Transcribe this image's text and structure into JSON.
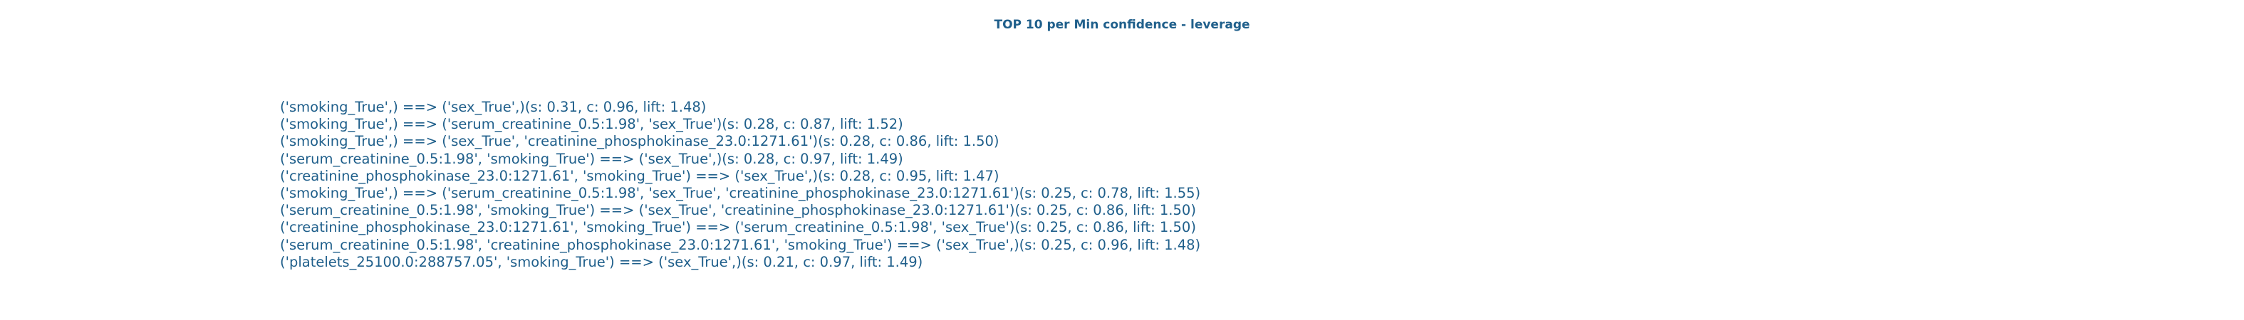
{
  "chart_data": {
    "type": "table",
    "title": "TOP 10 per Min confidence - leverage",
    "colors": {
      "text": "#1f5f8b",
      "background": "#ffffff"
    },
    "rules": [
      "('smoking_True',) ==> ('sex_True',)(s: 0.31, c: 0.96, lift: 1.48)",
      "('smoking_True',) ==> ('serum_creatinine_0.5:1.98', 'sex_True')(s: 0.28, c: 0.87, lift: 1.52)",
      "('smoking_True',) ==> ('sex_True', 'creatinine_phosphokinase_23.0:1271.61')(s: 0.28, c: 0.86, lift: 1.50)",
      "('serum_creatinine_0.5:1.98', 'smoking_True') ==> ('sex_True',)(s: 0.28, c: 0.97, lift: 1.49)",
      "('creatinine_phosphokinase_23.0:1271.61', 'smoking_True') ==> ('sex_True',)(s: 0.28, c: 0.95, lift: 1.47)",
      "('smoking_True',) ==> ('serum_creatinine_0.5:1.98', 'sex_True', 'creatinine_phosphokinase_23.0:1271.61')(s: 0.25, c: 0.78, lift: 1.55)",
      "('serum_creatinine_0.5:1.98', 'smoking_True') ==> ('sex_True', 'creatinine_phosphokinase_23.0:1271.61')(s: 0.25, c: 0.86, lift: 1.50)",
      "('creatinine_phosphokinase_23.0:1271.61', 'smoking_True') ==> ('serum_creatinine_0.5:1.98', 'sex_True')(s: 0.25, c: 0.86, lift: 1.50)",
      "('serum_creatinine_0.5:1.98', 'creatinine_phosphokinase_23.0:1271.61', 'smoking_True') ==> ('sex_True',)(s: 0.25, c: 0.96, lift: 1.48)",
      "('platelets_25100.0:288757.05', 'smoking_True') ==> ('sex_True',)(s: 0.21, c: 0.97, lift: 1.49)"
    ]
  }
}
